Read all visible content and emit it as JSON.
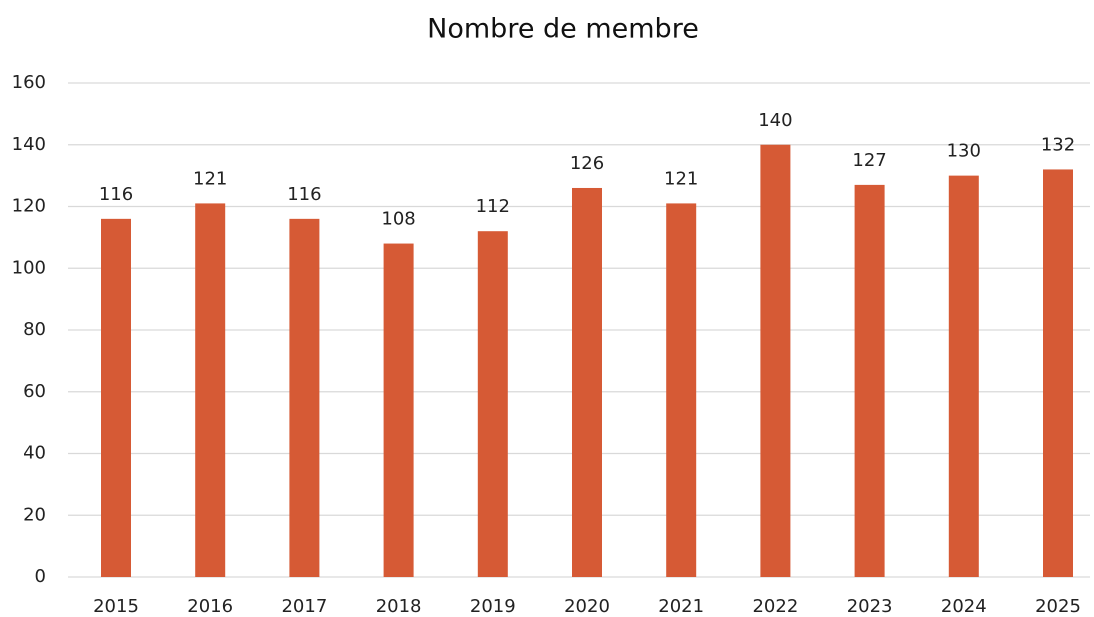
{
  "chart_data": {
    "type": "bar",
    "title": "Nombre de membre",
    "categories": [
      "2015",
      "2016",
      "2017",
      "2018",
      "2019",
      "2020",
      "2021",
      "2022",
      "2023",
      "2024",
      "2025"
    ],
    "values": [
      116,
      121,
      116,
      108,
      112,
      126,
      121,
      140,
      127,
      130,
      132
    ],
    "color": "#d65a35",
    "ylim": [
      0,
      160
    ],
    "yticks": [
      0,
      20,
      40,
      60,
      80,
      100,
      120,
      140,
      160
    ],
    "grid": true
  }
}
